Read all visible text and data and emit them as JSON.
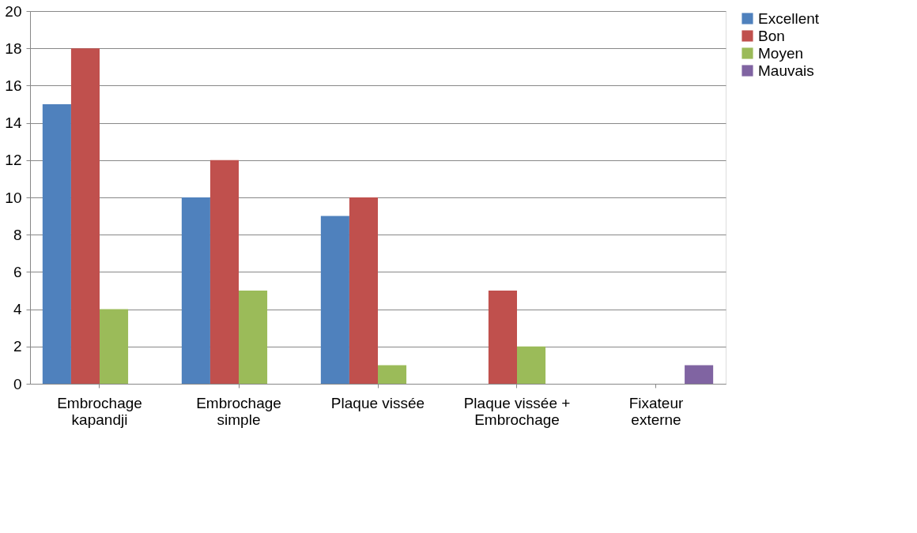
{
  "chart_data": {
    "type": "bar",
    "categories": [
      "Embrochage kapandji",
      "Embrochage simple",
      "Plaque vissée",
      "Plaque vissée + Embrochage",
      "Fixateur externe"
    ],
    "series": [
      {
        "name": "Excellent",
        "color": "#4f81bd",
        "values": [
          15,
          10,
          9,
          null,
          null
        ]
      },
      {
        "name": "Bon",
        "color": "#c0504d",
        "values": [
          18,
          12,
          10,
          5,
          null
        ]
      },
      {
        "name": "Moyen",
        "color": "#9bbb59",
        "values": [
          4,
          5,
          1,
          2,
          null
        ]
      },
      {
        "name": "Mauvais",
        "color": "#8064a2",
        "values": [
          null,
          null,
          null,
          null,
          1
        ]
      }
    ],
    "ylim": [
      0,
      20
    ],
    "yticks": [
      0,
      2,
      4,
      6,
      8,
      10,
      12,
      14,
      16,
      18,
      20
    ],
    "grid": "y",
    "legend": "right"
  }
}
